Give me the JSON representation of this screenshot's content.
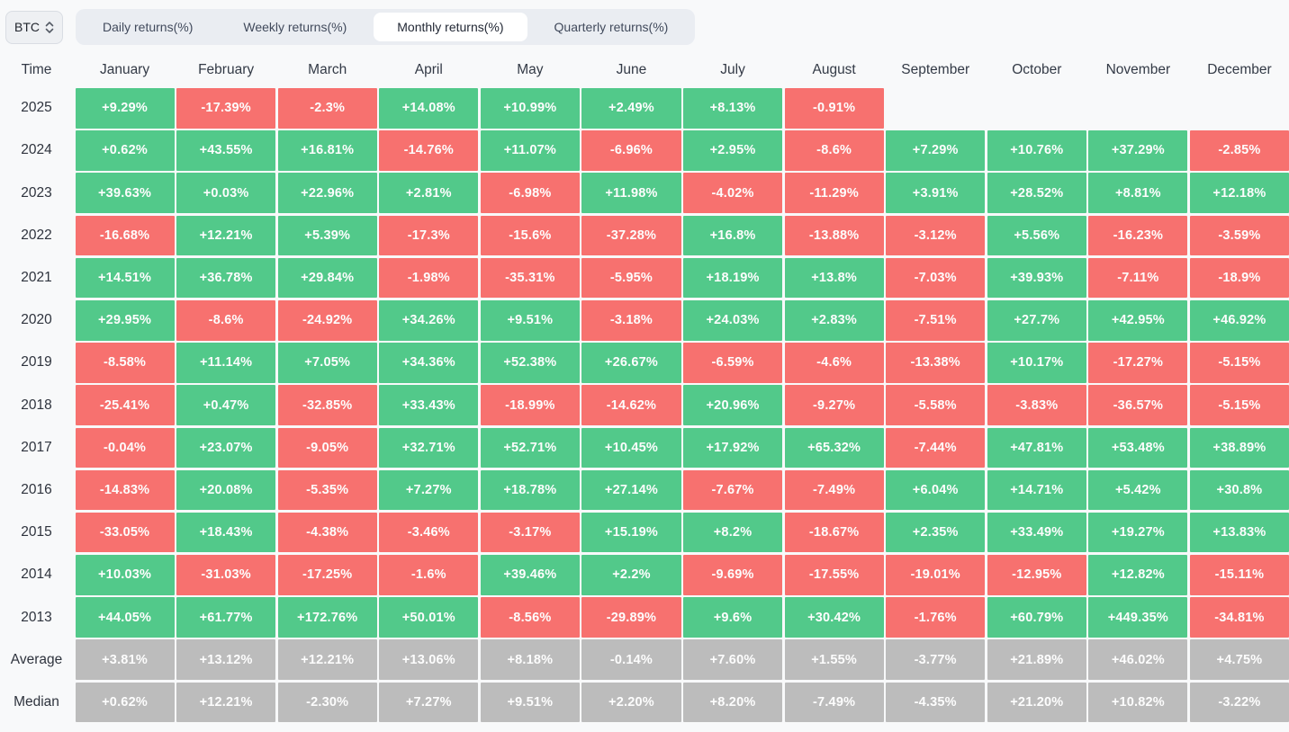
{
  "selector": {
    "symbol": "BTC"
  },
  "tabs": {
    "items": [
      {
        "id": "daily",
        "label": "Daily returns(%)",
        "active": false
      },
      {
        "id": "weekly",
        "label": "Weekly returns(%)",
        "active": false
      },
      {
        "id": "monthly",
        "label": "Monthly returns(%)",
        "active": true
      },
      {
        "id": "quarterly",
        "label": "Quarterly returns(%)",
        "active": false
      }
    ]
  },
  "colors": {
    "positive": "#52c98a",
    "negative": "#f7716f",
    "summary": "#bcbcbc"
  },
  "table": {
    "columns": [
      "Time",
      "January",
      "February",
      "March",
      "April",
      "May",
      "June",
      "July",
      "August",
      "September",
      "October",
      "November",
      "December"
    ],
    "rows": [
      {
        "label": "2025",
        "type": "year",
        "values": [
          "+9.29%",
          "-17.39%",
          "-2.3%",
          "+14.08%",
          "+10.99%",
          "+2.49%",
          "+8.13%",
          "-0.91%",
          "",
          "",
          "",
          ""
        ]
      },
      {
        "label": "2024",
        "type": "year",
        "values": [
          "+0.62%",
          "+43.55%",
          "+16.81%",
          "-14.76%",
          "+11.07%",
          "-6.96%",
          "+2.95%",
          "-8.6%",
          "+7.29%",
          "+10.76%",
          "+37.29%",
          "-2.85%"
        ]
      },
      {
        "label": "2023",
        "type": "year",
        "values": [
          "+39.63%",
          "+0.03%",
          "+22.96%",
          "+2.81%",
          "-6.98%",
          "+11.98%",
          "-4.02%",
          "-11.29%",
          "+3.91%",
          "+28.52%",
          "+8.81%",
          "+12.18%"
        ]
      },
      {
        "label": "2022",
        "type": "year",
        "values": [
          "-16.68%",
          "+12.21%",
          "+5.39%",
          "-17.3%",
          "-15.6%",
          "-37.28%",
          "+16.8%",
          "-13.88%",
          "-3.12%",
          "+5.56%",
          "-16.23%",
          "-3.59%"
        ]
      },
      {
        "label": "2021",
        "type": "year",
        "values": [
          "+14.51%",
          "+36.78%",
          "+29.84%",
          "-1.98%",
          "-35.31%",
          "-5.95%",
          "+18.19%",
          "+13.8%",
          "-7.03%",
          "+39.93%",
          "-7.11%",
          "-18.9%"
        ]
      },
      {
        "label": "2020",
        "type": "year",
        "values": [
          "+29.95%",
          "-8.6%",
          "-24.92%",
          "+34.26%",
          "+9.51%",
          "-3.18%",
          "+24.03%",
          "+2.83%",
          "-7.51%",
          "+27.7%",
          "+42.95%",
          "+46.92%"
        ]
      },
      {
        "label": "2019",
        "type": "year",
        "values": [
          "-8.58%",
          "+11.14%",
          "+7.05%",
          "+34.36%",
          "+52.38%",
          "+26.67%",
          "-6.59%",
          "-4.6%",
          "-13.38%",
          "+10.17%",
          "-17.27%",
          "-5.15%"
        ]
      },
      {
        "label": "2018",
        "type": "year",
        "values": [
          "-25.41%",
          "+0.47%",
          "-32.85%",
          "+33.43%",
          "-18.99%",
          "-14.62%",
          "+20.96%",
          "-9.27%",
          "-5.58%",
          "-3.83%",
          "-36.57%",
          "-5.15%"
        ]
      },
      {
        "label": "2017",
        "type": "year",
        "values": [
          "-0.04%",
          "+23.07%",
          "-9.05%",
          "+32.71%",
          "+52.71%",
          "+10.45%",
          "+17.92%",
          "+65.32%",
          "-7.44%",
          "+47.81%",
          "+53.48%",
          "+38.89%"
        ]
      },
      {
        "label": "2016",
        "type": "year",
        "values": [
          "-14.83%",
          "+20.08%",
          "-5.35%",
          "+7.27%",
          "+18.78%",
          "+27.14%",
          "-7.67%",
          "-7.49%",
          "+6.04%",
          "+14.71%",
          "+5.42%",
          "+30.8%"
        ]
      },
      {
        "label": "2015",
        "type": "year",
        "values": [
          "-33.05%",
          "+18.43%",
          "-4.38%",
          "-3.46%",
          "-3.17%",
          "+15.19%",
          "+8.2%",
          "-18.67%",
          "+2.35%",
          "+33.49%",
          "+19.27%",
          "+13.83%"
        ]
      },
      {
        "label": "2014",
        "type": "year",
        "values": [
          "+10.03%",
          "-31.03%",
          "-17.25%",
          "-1.6%",
          "+39.46%",
          "+2.2%",
          "-9.69%",
          "-17.55%",
          "-19.01%",
          "-12.95%",
          "+12.82%",
          "-15.11%"
        ]
      },
      {
        "label": "2013",
        "type": "year",
        "values": [
          "+44.05%",
          "+61.77%",
          "+172.76%",
          "+50.01%",
          "-8.56%",
          "-29.89%",
          "+9.6%",
          "+30.42%",
          "-1.76%",
          "+60.79%",
          "+449.35%",
          "-34.81%"
        ]
      },
      {
        "label": "Average",
        "type": "summary",
        "values": [
          "+3.81%",
          "+13.12%",
          "+12.21%",
          "+13.06%",
          "+8.18%",
          "-0.14%",
          "+7.60%",
          "+1.55%",
          "-3.77%",
          "+21.89%",
          "+46.02%",
          "+4.75%"
        ]
      },
      {
        "label": "Median",
        "type": "summary",
        "values": [
          "+0.62%",
          "+12.21%",
          "-2.30%",
          "+7.27%",
          "+9.51%",
          "+2.20%",
          "+8.20%",
          "-7.49%",
          "-4.35%",
          "+21.20%",
          "+10.82%",
          "-3.22%"
        ]
      }
    ]
  },
  "chart_data": {
    "type": "heatmap",
    "title": "Monthly returns(%)",
    "symbol": "BTC",
    "x_categories": [
      "January",
      "February",
      "March",
      "April",
      "May",
      "June",
      "July",
      "August",
      "September",
      "October",
      "November",
      "December"
    ],
    "y_categories": [
      "2025",
      "2024",
      "2023",
      "2022",
      "2021",
      "2020",
      "2019",
      "2018",
      "2017",
      "2016",
      "2015",
      "2014",
      "2013",
      "Average",
      "Median"
    ],
    "unit": "%",
    "values": [
      [
        9.29,
        -17.39,
        -2.3,
        14.08,
        10.99,
        2.49,
        8.13,
        -0.91,
        null,
        null,
        null,
        null
      ],
      [
        0.62,
        43.55,
        16.81,
        -14.76,
        11.07,
        -6.96,
        2.95,
        -8.6,
        7.29,
        10.76,
        37.29,
        -2.85
      ],
      [
        39.63,
        0.03,
        22.96,
        2.81,
        -6.98,
        11.98,
        -4.02,
        -11.29,
        3.91,
        28.52,
        8.81,
        12.18
      ],
      [
        -16.68,
        12.21,
        5.39,
        -17.3,
        -15.6,
        -37.28,
        16.8,
        -13.88,
        -3.12,
        5.56,
        -16.23,
        -3.59
      ],
      [
        14.51,
        36.78,
        29.84,
        -1.98,
        -35.31,
        -5.95,
        18.19,
        13.8,
        -7.03,
        39.93,
        -7.11,
        -18.9
      ],
      [
        29.95,
        -8.6,
        -24.92,
        34.26,
        9.51,
        -3.18,
        24.03,
        2.83,
        -7.51,
        27.7,
        42.95,
        46.92
      ],
      [
        -8.58,
        11.14,
        7.05,
        34.36,
        52.38,
        26.67,
        -6.59,
        -4.6,
        -13.38,
        10.17,
        -17.27,
        -5.15
      ],
      [
        -25.41,
        0.47,
        -32.85,
        33.43,
        -18.99,
        -14.62,
        20.96,
        -9.27,
        -5.58,
        -3.83,
        -36.57,
        -5.15
      ],
      [
        -0.04,
        23.07,
        -9.05,
        32.71,
        52.71,
        10.45,
        17.92,
        65.32,
        -7.44,
        47.81,
        53.48,
        38.89
      ],
      [
        -14.83,
        20.08,
        -5.35,
        7.27,
        18.78,
        27.14,
        -7.67,
        -7.49,
        6.04,
        14.71,
        5.42,
        30.8
      ],
      [
        -33.05,
        18.43,
        -4.38,
        -3.46,
        -3.17,
        15.19,
        8.2,
        -18.67,
        2.35,
        33.49,
        19.27,
        13.83
      ],
      [
        10.03,
        -31.03,
        -17.25,
        -1.6,
        39.46,
        2.2,
        -9.69,
        -17.55,
        -19.01,
        -12.95,
        12.82,
        -15.11
      ],
      [
        44.05,
        61.77,
        172.76,
        50.01,
        -8.56,
        -29.89,
        9.6,
        30.42,
        -1.76,
        60.79,
        449.35,
        -34.81
      ],
      [
        3.81,
        13.12,
        12.21,
        13.06,
        8.18,
        -0.14,
        7.6,
        1.55,
        -3.77,
        21.89,
        46.02,
        4.75
      ],
      [
        0.62,
        12.21,
        -2.3,
        7.27,
        9.51,
        2.2,
        8.2,
        -7.49,
        -4.35,
        21.2,
        10.82,
        -3.22
      ]
    ],
    "legend": "green = positive monthly return, red = negative monthly return, gray = Average/Median summary rows"
  }
}
